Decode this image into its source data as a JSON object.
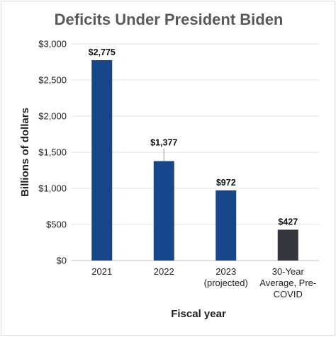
{
  "chart_data": {
    "type": "bar",
    "title": "Deficits Under President Biden",
    "xlabel": "Fiscal year",
    "ylabel": "Billions of dollars",
    "categories": [
      [
        "2021"
      ],
      [
        "2022"
      ],
      [
        "2023",
        "(projected)"
      ],
      [
        "30-Year",
        "Average, Pre-",
        "COVID"
      ]
    ],
    "values": [
      2775,
      1377,
      972,
      427
    ],
    "data_labels": [
      "$2,775",
      "$1,377",
      "$972",
      "$427"
    ],
    "bar_colors": [
      "#17468a",
      "#17468a",
      "#17468a",
      "#33363d"
    ],
    "ylim": [
      0,
      3000
    ],
    "yticks": [
      0,
      500,
      1000,
      1500,
      2000,
      2500,
      3000
    ],
    "ytick_labels": [
      "$0",
      "$500",
      "$1,000",
      "$1,500",
      "$2,000",
      "$2,500",
      "$3,000"
    ],
    "grid": true
  }
}
